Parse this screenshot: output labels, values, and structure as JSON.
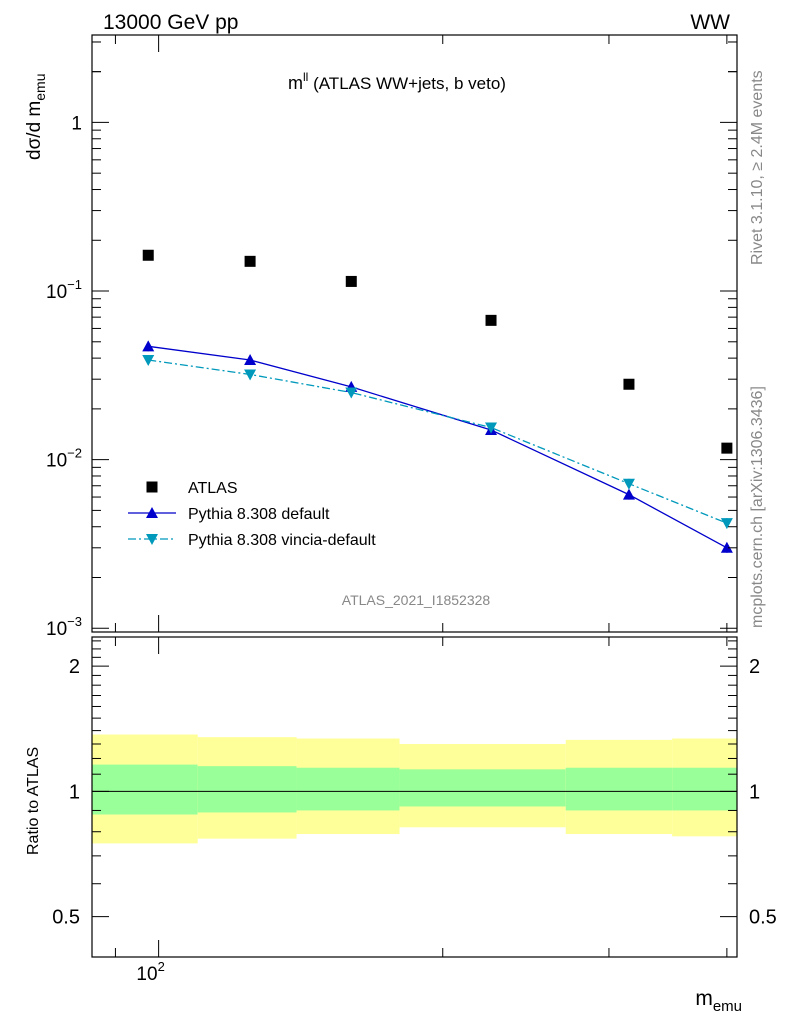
{
  "header": {
    "left": "13000 GeV pp",
    "right": "WW"
  },
  "side_labels": {
    "rivet": "Rivet 3.1.10, ≥ 2.4M events",
    "mcplots": "mcplots.cern.ch [arXiv:1306.3436]"
  },
  "chart_data": [
    {
      "type": "scatter",
      "title_main": "m",
      "title_sup": "ll",
      "title_rest": " (ATLAS WW+jets, b veto)",
      "ylabel_main": "dσ/d m",
      "ylabel_sub": "emu",
      "xlabel_main": "m",
      "xlabel_sub": "emu",
      "watermark": "ATLAS_2021_I1852328",
      "x_scale": "log",
      "y_scale": "log",
      "xlim": [
        85,
        410
      ],
      "ylim": [
        0.00095,
        3.3
      ],
      "y_ticks": [
        {
          "v": 0.001,
          "base": "10",
          "exp": "−3"
        },
        {
          "v": 0.01,
          "base": "10",
          "exp": "−2"
        },
        {
          "v": 0.1,
          "base": "10",
          "exp": "−1"
        },
        {
          "v": 1,
          "base": "1",
          "exp": ""
        }
      ],
      "x_tick_labels": [
        {
          "v": 100,
          "base": "10",
          "exp": "2"
        }
      ],
      "legend_position": "bottom-left",
      "series": [
        {
          "name": "ATLAS",
          "color": "#000000",
          "marker": "square",
          "line": "none",
          "x": [
            97.5,
            125,
            160,
            225,
            315,
            400
          ],
          "y": [
            0.163,
            0.15,
            0.114,
            0.067,
            0.028,
            0.0117
          ]
        },
        {
          "name": "Pythia 8.308 default",
          "color": "#0000cc",
          "marker": "triangle-up",
          "line": "solid",
          "x": [
            97.5,
            125,
            160,
            225,
            315,
            400
          ],
          "y": [
            0.047,
            0.039,
            0.027,
            0.015,
            0.0062,
            0.003
          ]
        },
        {
          "name": "Pythia 8.308 vincia-default",
          "color": "#0099bb",
          "marker": "triangle-down",
          "line": "dashdot",
          "x": [
            97.5,
            125,
            160,
            225,
            315,
            400
          ],
          "y": [
            0.039,
            0.032,
            0.025,
            0.0155,
            0.0072,
            0.0042
          ]
        }
      ]
    },
    {
      "type": "area",
      "ylabel": "Ratio to ATLAS",
      "x_scale": "log",
      "xlim": [
        85,
        410
      ],
      "ylim": [
        0.4,
        2.35
      ],
      "y_ticks": [
        {
          "v": 0.5,
          "label": "0.5"
        },
        {
          "v": 1,
          "label": "1"
        },
        {
          "v": 2,
          "label": "2"
        }
      ],
      "reference_line": 1,
      "bands": [
        {
          "x": [
            85,
            110
          ],
          "lo": 0.75,
          "hi": 1.37,
          "lo_inner": 0.88,
          "hi_inner": 1.16
        },
        {
          "x": [
            110,
            140
          ],
          "lo": 0.77,
          "hi": 1.35,
          "lo_inner": 0.89,
          "hi_inner": 1.15
        },
        {
          "x": [
            140,
            180
          ],
          "lo": 0.79,
          "hi": 1.34,
          "lo_inner": 0.9,
          "hi_inner": 1.14
        },
        {
          "x": [
            180,
            270
          ],
          "lo": 0.82,
          "hi": 1.3,
          "lo_inner": 0.92,
          "hi_inner": 1.13
        },
        {
          "x": [
            270,
            350
          ],
          "lo": 0.79,
          "hi": 1.33,
          "lo_inner": 0.9,
          "hi_inner": 1.14
        },
        {
          "x": [
            350,
            410
          ],
          "lo": 0.78,
          "hi": 1.34,
          "lo_inner": 0.9,
          "hi_inner": 1.14
        }
      ],
      "band_colors": {
        "outer": "#ffff99",
        "inner": "#99ff99"
      }
    }
  ]
}
